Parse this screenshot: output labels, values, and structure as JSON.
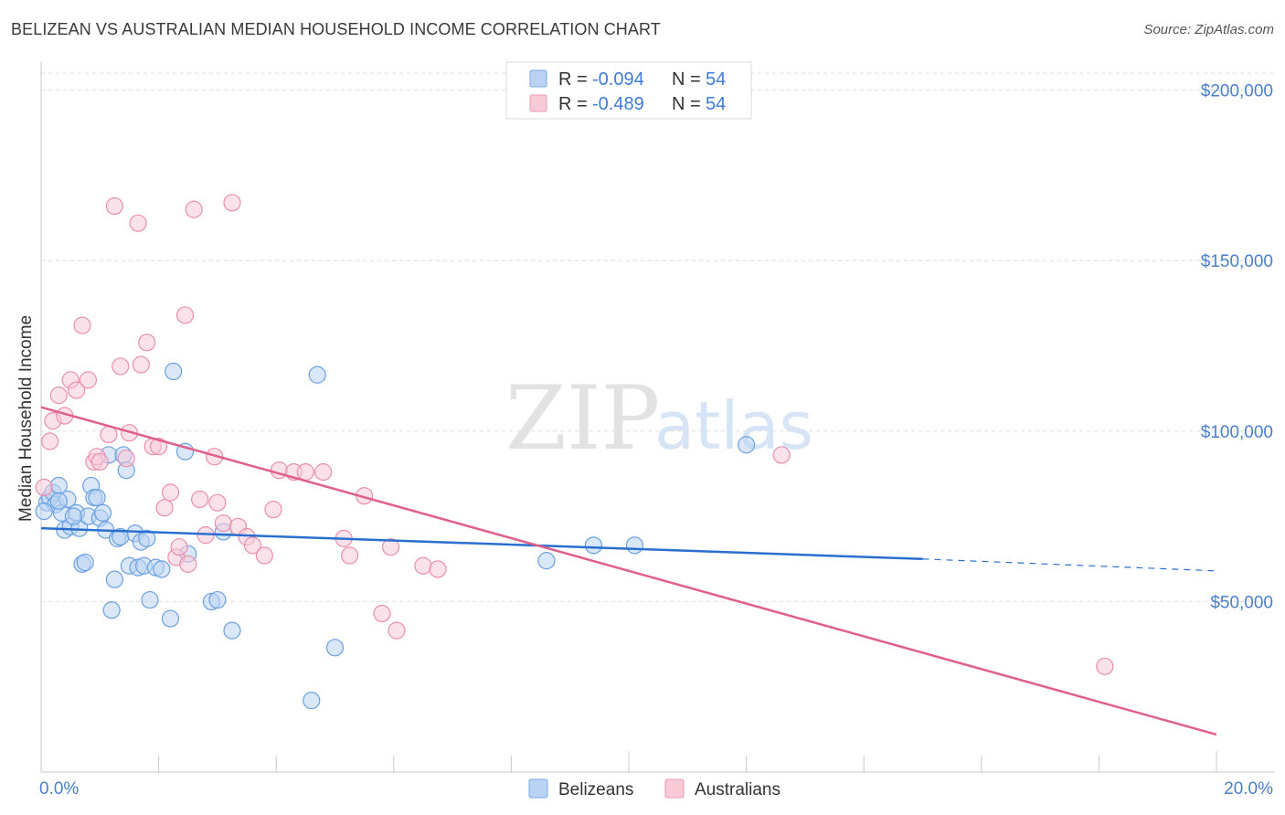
{
  "header": {
    "title": "BELIZEAN VS AUSTRALIAN MEDIAN HOUSEHOLD INCOME CORRELATION CHART",
    "source": "Source: ZipAtlas.com"
  },
  "watermark": {
    "zip": "ZIP",
    "atlas": "atlas"
  },
  "legend": {
    "rows": [
      {
        "r_label": "R = ",
        "r_value": "-0.094",
        "n_label": "N = ",
        "n_value": "54",
        "color": "#9ec2ee"
      },
      {
        "r_label": "R = ",
        "r_value": "-0.489",
        "n_label": "N = ",
        "n_value": "54",
        "color": "#f4b5c9"
      }
    ]
  },
  "chart_data": {
    "type": "scatter",
    "title": "BELIZEAN VS AUSTRALIAN MEDIAN HOUSEHOLD INCOME CORRELATION CHART",
    "xlabel": "",
    "ylabel": "Median Household Income",
    "xlim": [
      0,
      20
    ],
    "ylim": [
      0,
      205000
    ],
    "x_tick_labels": [
      "0.0%",
      "20.0%"
    ],
    "y_tick_labels": [
      "$50,000",
      "$100,000",
      "$150,000",
      "$200,000"
    ],
    "y_tick_values": [
      50000,
      100000,
      150000,
      200000
    ],
    "grid": true,
    "legend_position": "top-center",
    "series": [
      {
        "name": "Belizeans",
        "color": "#6aa0e0",
        "fill": "#b9d3f3",
        "trend_color": "#2a6fcf",
        "trend": {
          "x_start": 0.0,
          "y_start": 71500,
          "x_solid_end": 15.0,
          "y_solid_end": 62500,
          "x_end": 20.0,
          "y_end": 59000
        },
        "points": [
          [
            0.1,
            79000
          ],
          [
            0.15,
            80500
          ],
          [
            0.2,
            82000
          ],
          [
            0.25,
            78500
          ],
          [
            0.3,
            84000
          ],
          [
            0.35,
            76000
          ],
          [
            0.4,
            71000
          ],
          [
            0.45,
            80000
          ],
          [
            0.5,
            72000
          ],
          [
            0.6,
            76000
          ],
          [
            0.65,
            71500
          ],
          [
            0.7,
            61000
          ],
          [
            0.75,
            61500
          ],
          [
            0.8,
            75000
          ],
          [
            0.85,
            84000
          ],
          [
            0.9,
            80500
          ],
          [
            0.95,
            80500
          ],
          [
            1.0,
            74500
          ],
          [
            1.05,
            76000
          ],
          [
            1.1,
            71000
          ],
          [
            1.15,
            93000
          ],
          [
            1.2,
            47500
          ],
          [
            1.25,
            56500
          ],
          [
            1.3,
            68500
          ],
          [
            1.35,
            69000
          ],
          [
            1.4,
            93000
          ],
          [
            1.45,
            88500
          ],
          [
            1.5,
            60500
          ],
          [
            1.6,
            70000
          ],
          [
            1.65,
            60000
          ],
          [
            1.7,
            67500
          ],
          [
            1.75,
            60500
          ],
          [
            1.8,
            68500
          ],
          [
            1.85,
            50500
          ],
          [
            1.95,
            60000
          ],
          [
            2.05,
            59500
          ],
          [
            2.2,
            45000
          ],
          [
            2.25,
            117500
          ],
          [
            2.45,
            94000
          ],
          [
            2.5,
            64000
          ],
          [
            2.9,
            50000
          ],
          [
            3.0,
            50500
          ],
          [
            3.1,
            70500
          ],
          [
            3.25,
            41500
          ],
          [
            4.6,
            21000
          ],
          [
            4.7,
            116500
          ],
          [
            5.0,
            36500
          ],
          [
            8.6,
            62000
          ],
          [
            9.4,
            66500
          ],
          [
            10.1,
            66500
          ],
          [
            12.0,
            96000
          ],
          [
            0.05,
            76500
          ],
          [
            0.55,
            75000
          ],
          [
            0.3,
            79500
          ]
        ]
      },
      {
        "name": "Australians",
        "color": "#ea8fab",
        "fill": "#f8cad8",
        "trend_color": "#e0608a",
        "trend": {
          "x_start": 0.0,
          "y_start": 107000,
          "x_end": 20.0,
          "y_end": 11000
        },
        "points": [
          [
            0.05,
            83500
          ],
          [
            0.15,
            97000
          ],
          [
            0.2,
            103000
          ],
          [
            0.3,
            110500
          ],
          [
            0.4,
            104500
          ],
          [
            0.5,
            115000
          ],
          [
            0.6,
            112000
          ],
          [
            0.7,
            131000
          ],
          [
            0.8,
            115000
          ],
          [
            0.9,
            91000
          ],
          [
            0.95,
            92500
          ],
          [
            1.0,
            91000
          ],
          [
            1.15,
            99000
          ],
          [
            1.25,
            166000
          ],
          [
            1.35,
            119000
          ],
          [
            1.45,
            92000
          ],
          [
            1.5,
            99500
          ],
          [
            1.65,
            161000
          ],
          [
            1.7,
            119500
          ],
          [
            1.8,
            126000
          ],
          [
            1.9,
            95500
          ],
          [
            2.0,
            95500
          ],
          [
            2.1,
            77500
          ],
          [
            2.2,
            82000
          ],
          [
            2.3,
            63000
          ],
          [
            2.35,
            66000
          ],
          [
            2.45,
            134000
          ],
          [
            2.5,
            61000
          ],
          [
            2.6,
            165000
          ],
          [
            2.7,
            80000
          ],
          [
            2.8,
            69500
          ],
          [
            2.95,
            92500
          ],
          [
            3.0,
            79000
          ],
          [
            3.1,
            73000
          ],
          [
            3.25,
            167000
          ],
          [
            3.35,
            72000
          ],
          [
            3.5,
            69000
          ],
          [
            3.6,
            66500
          ],
          [
            3.8,
            63500
          ],
          [
            3.95,
            77000
          ],
          [
            4.05,
            88500
          ],
          [
            4.3,
            88000
          ],
          [
            4.5,
            88000
          ],
          [
            4.8,
            88000
          ],
          [
            5.15,
            68500
          ],
          [
            5.25,
            63500
          ],
          [
            5.5,
            81000
          ],
          [
            5.8,
            46500
          ],
          [
            5.95,
            66000
          ],
          [
            6.05,
            41500
          ],
          [
            6.5,
            60500
          ],
          [
            6.75,
            59500
          ],
          [
            12.6,
            93000
          ],
          [
            18.1,
            31000
          ]
        ]
      }
    ]
  }
}
